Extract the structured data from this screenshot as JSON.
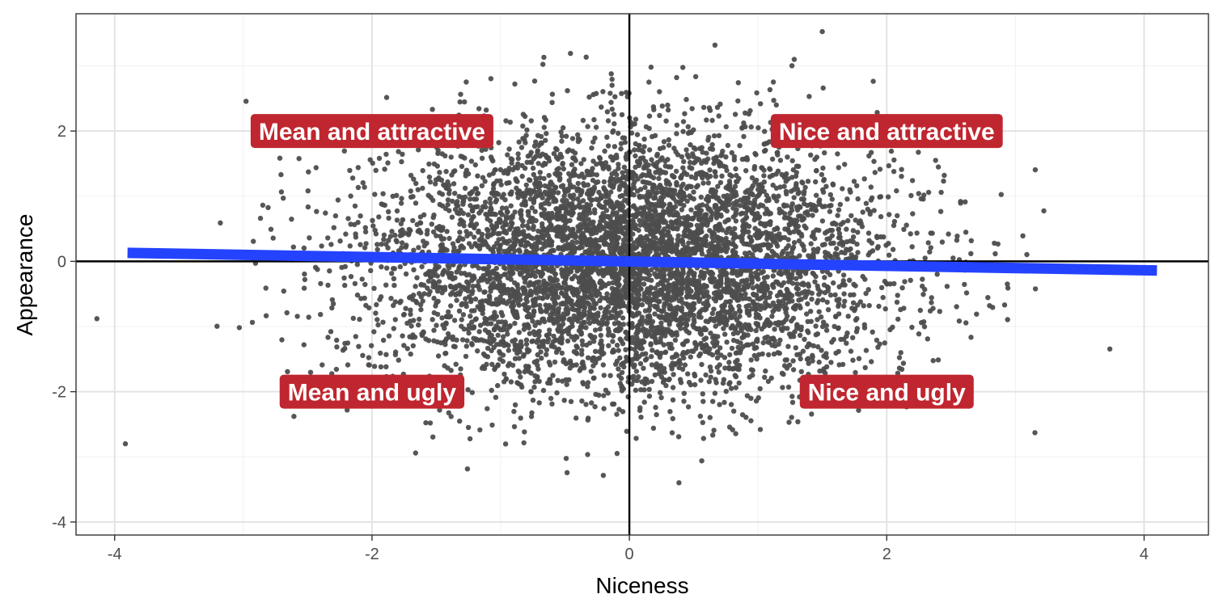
{
  "chart_data": {
    "type": "scatter",
    "title": "",
    "xlabel": "Niceness",
    "ylabel": "Appearance",
    "xlim": [
      -4.3,
      4.5
    ],
    "ylim": [
      -4.2,
      3.8
    ],
    "x_ticks": [
      -4,
      -2,
      0,
      2,
      4
    ],
    "y_ticks": [
      -4,
      -2,
      0,
      2
    ],
    "x_tick_labels": [
      "-4",
      "-2",
      "0",
      "2",
      "4"
    ],
    "y_tick_labels": [
      "-4",
      "-2",
      "0",
      "2"
    ],
    "grid": true,
    "reference_lines": {
      "x": 0,
      "y": 0
    },
    "points": {
      "count": 6000,
      "distribution": "independent standard normal in niceness and appearance",
      "color": "#4d4d4d"
    },
    "trend_line": {
      "x": [
        -3.9,
        4.1
      ],
      "y": [
        0.13,
        -0.14
      ],
      "color": "#2343ff"
    },
    "annotations": [
      {
        "text": "Mean and attractive",
        "x": -2,
        "y": 2
      },
      {
        "text": "Nice and attractive",
        "x": 2,
        "y": 2
      },
      {
        "text": "Mean and ugly",
        "x": -2,
        "y": -2
      },
      {
        "text": "Nice and ugly",
        "x": 2,
        "y": -2
      }
    ],
    "annotation_fill": "#c0262f"
  }
}
